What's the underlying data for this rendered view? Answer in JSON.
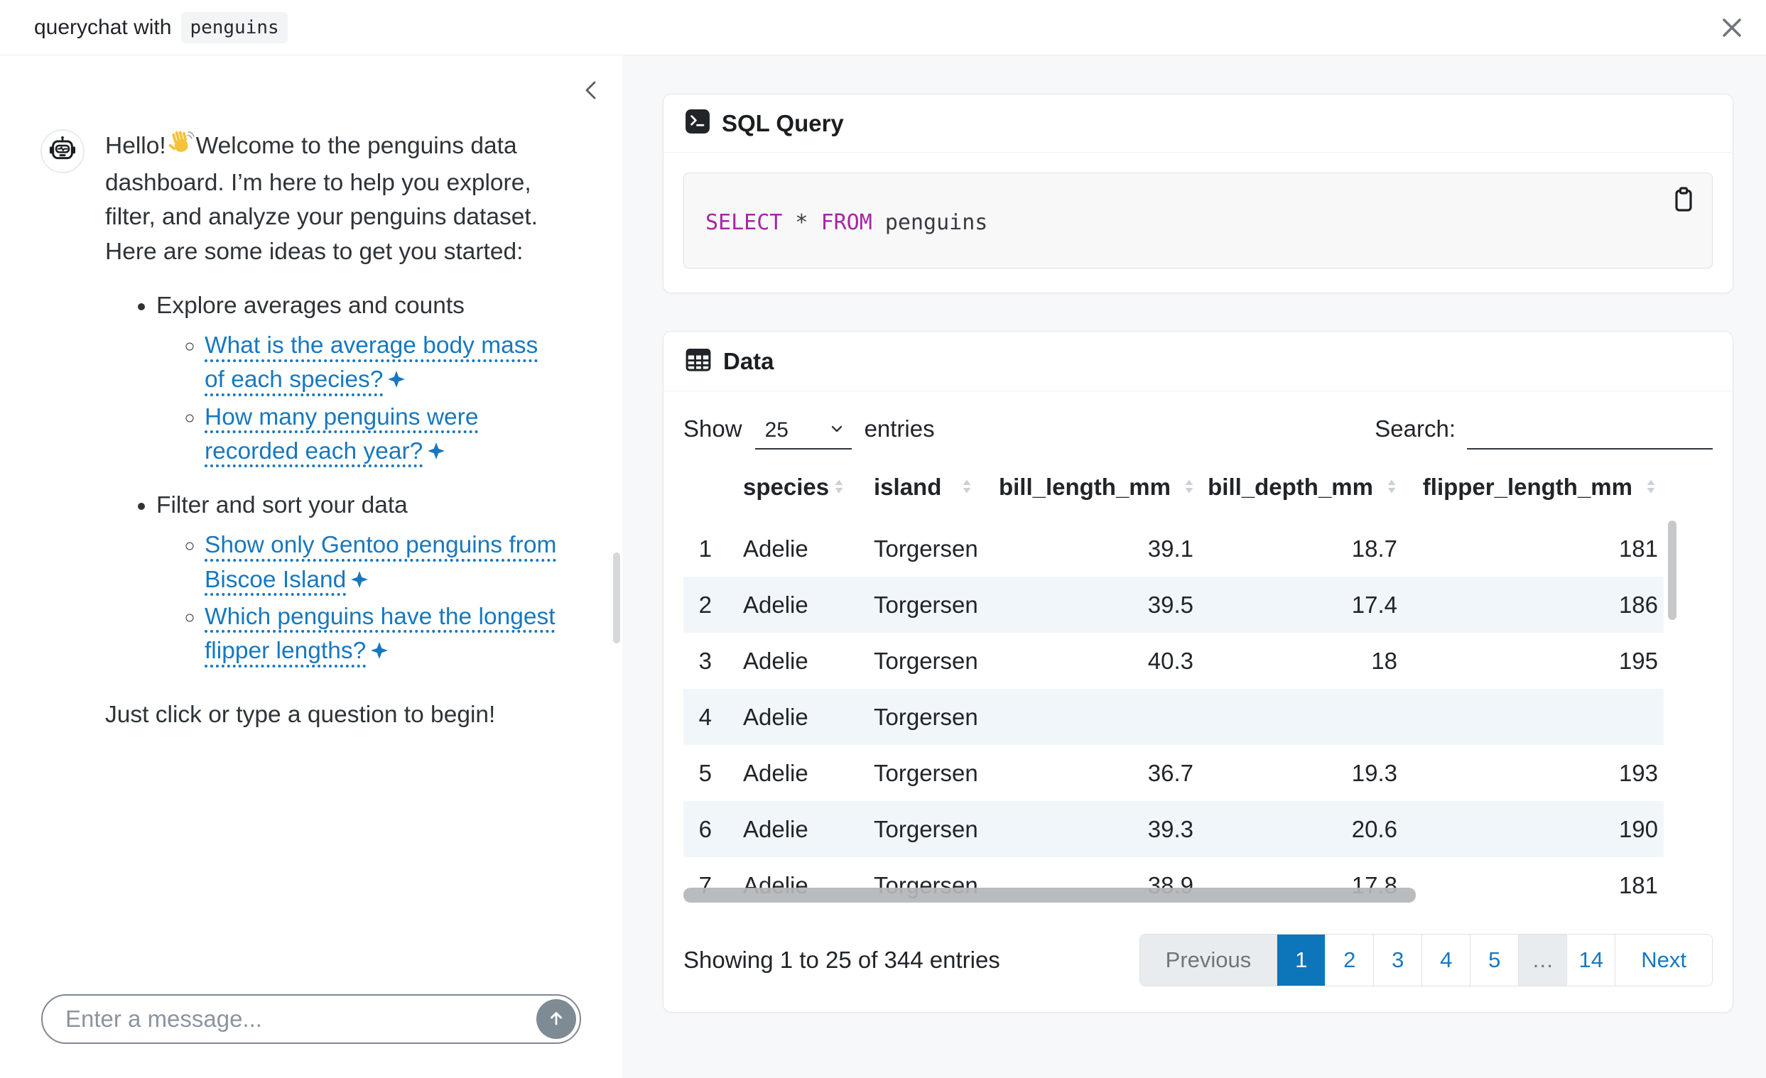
{
  "window": {
    "title_prefix": "querychat with",
    "title_chip": "penguins"
  },
  "chat": {
    "greeting_before": "Hello!",
    "wave_icon": "👋",
    "greeting_after": "Welcome to the penguins data dashboard. I’m here to help you explore, filter, and analyze your penguins dataset. Here are some ideas to get you started:",
    "sections": [
      {
        "title": "Explore averages and counts",
        "links": [
          "What is the average body mass of each species?",
          "How many penguins were recorded each year?"
        ]
      },
      {
        "title": "Filter and sort your data",
        "links": [
          "Show only Gentoo penguins from Biscoe Island",
          "Which penguins have the longest flipper lengths?"
        ]
      }
    ],
    "sparkle_icon": "✦",
    "closing": "Just click or type a question to begin!",
    "input_placeholder": "Enter a message..."
  },
  "sql_card": {
    "title": "SQL Query",
    "terminal_icon": "terminal",
    "copy_icon": "clipboard",
    "code_tokens": [
      {
        "text": "SELECT",
        "type": "kw"
      },
      {
        "text": " * ",
        "type": "plain"
      },
      {
        "text": "FROM",
        "type": "kw"
      },
      {
        "text": " penguins",
        "type": "plain"
      }
    ]
  },
  "data_card": {
    "title": "Data",
    "table_icon": "table-grid",
    "show_label": "Show",
    "page_length": "25",
    "entries_label": "entries",
    "search_label": "Search:",
    "search_value": ""
  },
  "table": {
    "columns": [
      {
        "label": "",
        "sortable": false
      },
      {
        "label": "species",
        "sortable": true
      },
      {
        "label": "island",
        "sortable": true
      },
      {
        "label": "bill_length_mm",
        "sortable": true
      },
      {
        "label": "bill_depth_mm",
        "sortable": true
      },
      {
        "label": "flipper_length_mm",
        "sortable": true
      }
    ],
    "rows": [
      [
        "1",
        "Adelie",
        "Torgersen",
        "39.1",
        "18.7",
        "181"
      ],
      [
        "2",
        "Adelie",
        "Torgersen",
        "39.5",
        "17.4",
        "186"
      ],
      [
        "3",
        "Adelie",
        "Torgersen",
        "40.3",
        "18",
        "195"
      ],
      [
        "4",
        "Adelie",
        "Torgersen",
        "",
        "",
        ""
      ],
      [
        "5",
        "Adelie",
        "Torgersen",
        "36.7",
        "19.3",
        "193"
      ],
      [
        "6",
        "Adelie",
        "Torgersen",
        "39.3",
        "20.6",
        "190"
      ],
      [
        "7",
        "Adelie",
        "Torgersen",
        "38.9",
        "17.8",
        "181"
      ]
    ]
  },
  "pagination": {
    "info": "Showing 1 to 25 of 344 entries",
    "buttons": [
      {
        "label": "Previous",
        "state": "disabled"
      },
      {
        "label": "1",
        "state": "active"
      },
      {
        "label": "2",
        "state": "normal"
      },
      {
        "label": "3",
        "state": "normal"
      },
      {
        "label": "4",
        "state": "normal"
      },
      {
        "label": "5",
        "state": "normal"
      },
      {
        "label": "…",
        "state": "disabled"
      },
      {
        "label": "14",
        "state": "normal"
      },
      {
        "label": "Next",
        "state": "normal"
      }
    ]
  },
  "colors": {
    "link_blue": "#1878be",
    "active_page_blue": "#0d76bb",
    "keyword_magenta": "#a626a4",
    "stripe_blue": "#f1f6fa",
    "panel_gray": "#f7f8f9"
  }
}
